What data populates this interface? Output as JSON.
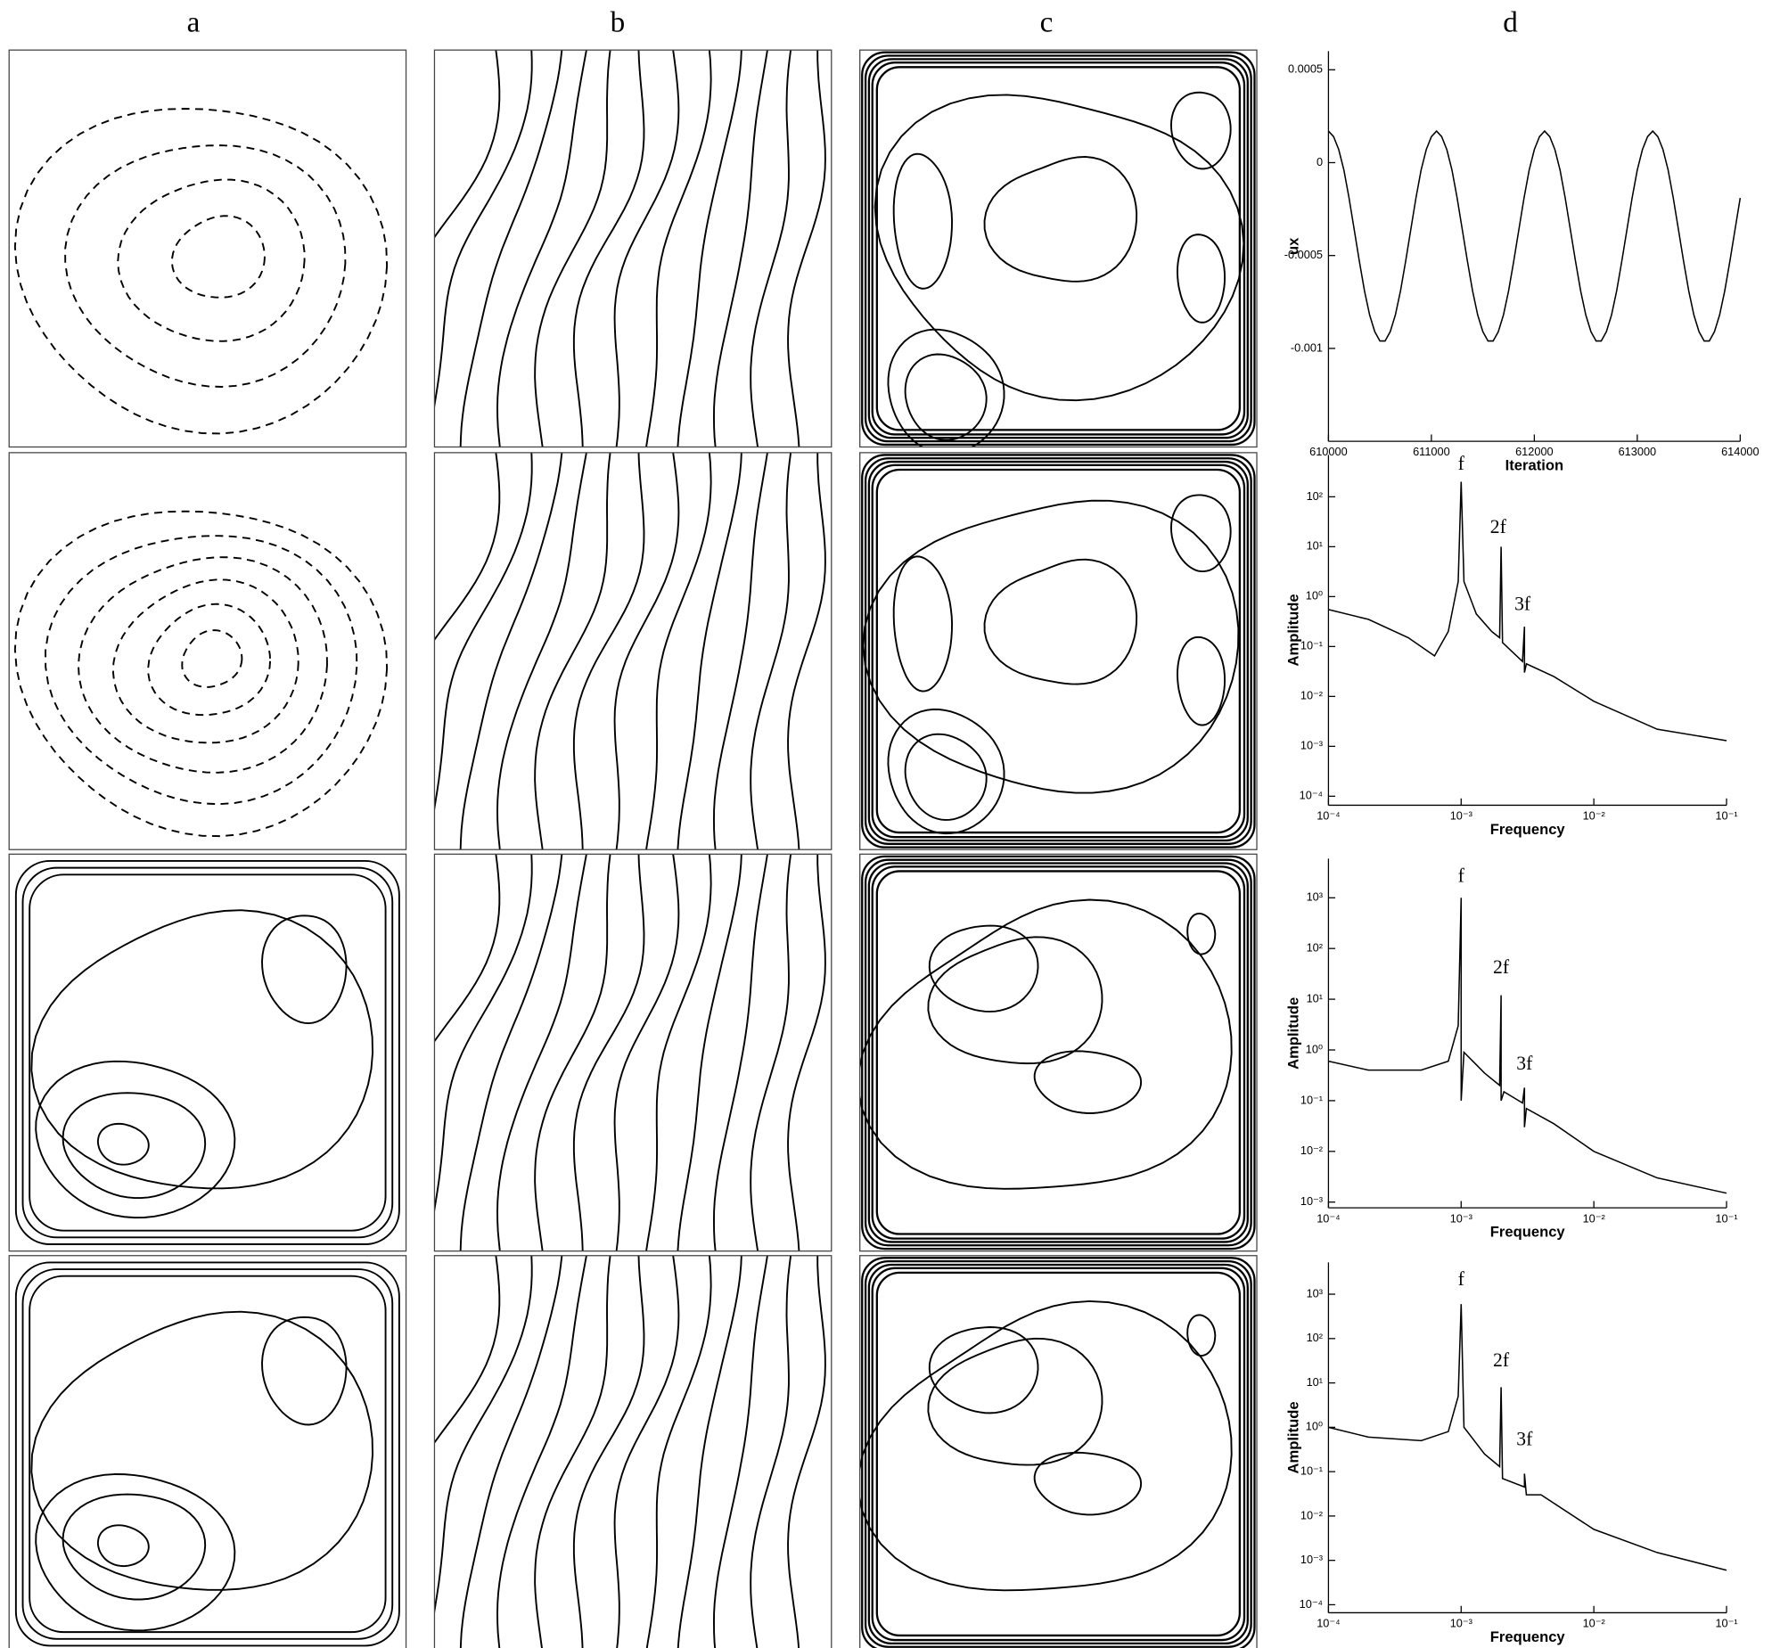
{
  "column_labels": [
    "a",
    "b",
    "c",
    "d"
  ],
  "chart_data": [
    {
      "type": "line",
      "xlabel": "Iteration",
      "ylabel": "ux",
      "color": "#000000",
      "x": [
        610000,
        610050,
        610100,
        610150,
        610200,
        610250,
        610300,
        610350,
        610400,
        610450,
        610500,
        610550,
        610600,
        610650,
        610700,
        610750,
        610800,
        610850,
        610900,
        610950,
        611000,
        611050,
        611100,
        611150,
        611200,
        611250,
        611300,
        611350,
        611400,
        611450,
        611500,
        611550,
        611600,
        611650,
        611700,
        611750,
        611800,
        611850,
        611900,
        611950,
        612000,
        612050,
        612100,
        612150,
        612200,
        612250,
        612300,
        612350,
        612400,
        612450,
        612500,
        612550,
        612600,
        612650,
        612700,
        612750,
        612800,
        612850,
        612900,
        612950,
        613000,
        613050,
        613100,
        613150,
        613200,
        613250,
        613300,
        613350,
        613400,
        613450,
        613500,
        613550,
        613600,
        613650,
        613700,
        613750,
        613800,
        613850,
        613900,
        613950,
        614000
      ],
      "values": [
        0.00017,
        0.00014,
        7e-05,
        -4e-05,
        -0.00019,
        -0.00036,
        -0.00053,
        -0.00069,
        -0.00082,
        -0.00091,
        -0.00096,
        -0.00096,
        -0.00091,
        -0.00082,
        -0.00069,
        -0.00053,
        -0.00036,
        -0.00019,
        -4e-05,
        7e-05,
        0.00014,
        0.00017,
        0.00014,
        7e-05,
        -4e-05,
        -0.00019,
        -0.00036,
        -0.00053,
        -0.00069,
        -0.00082,
        -0.00091,
        -0.00096,
        -0.00096,
        -0.00091,
        -0.00082,
        -0.00069,
        -0.00053,
        -0.00036,
        -0.00019,
        -4e-05,
        7e-05,
        0.00014,
        0.00017,
        0.00014,
        7e-05,
        -4e-05,
        -0.00019,
        -0.00036,
        -0.00053,
        -0.00069,
        -0.00082,
        -0.00091,
        -0.00096,
        -0.00096,
        -0.00091,
        -0.00082,
        -0.00069,
        -0.00053,
        -0.00036,
        -0.00019,
        -4e-05,
        7e-05,
        0.00014,
        0.00017,
        0.00014,
        7e-05,
        -4e-05,
        -0.00019,
        -0.00036,
        -0.00053,
        -0.00069,
        -0.00082,
        -0.00091,
        -0.00096,
        -0.00096,
        -0.00091,
        -0.00082,
        -0.00069,
        -0.00053,
        -0.00036,
        -0.00019
      ],
      "xlim": [
        610000,
        614000
      ],
      "xticks": [
        610000,
        611000,
        612000,
        613000,
        614000
      ],
      "ylim": [
        -0.0015,
        0.0006
      ],
      "yticks": [
        0.0005,
        0,
        -0.0005,
        -0.001
      ]
    },
    {
      "type": "line",
      "log_x": true,
      "log_y": true,
      "xlabel": "Frequency",
      "ylabel": "Amplitude",
      "color": "#000000",
      "x": [
        0.0001,
        0.0002,
        0.0004,
        0.00063,
        0.0008,
        0.00095,
        0.001,
        0.00105,
        0.0013,
        0.0017,
        0.00195,
        0.002,
        0.00205,
        0.0029,
        0.003,
        0.003,
        0.0031,
        0.005,
        0.01,
        0.03,
        0.1
      ],
      "values": [
        0.55,
        0.35,
        0.15,
        0.065,
        0.2,
        2,
        200,
        2,
        0.45,
        0.2,
        0.15,
        10,
        0.12,
        0.05,
        0.25,
        0.03,
        0.045,
        0.025,
        0.008,
        0.0022,
        0.0013
      ],
      "xlim": [
        0.0001,
        0.1
      ],
      "xticks": [
        {
          "value": 0.0001,
          "label": "10⁻⁴"
        },
        {
          "value": 0.001,
          "label": "10⁻³"
        },
        {
          "value": 0.01,
          "label": "10⁻²"
        },
        {
          "value": 0.1,
          "label": "10⁻¹"
        }
      ],
      "ylim": [
        6.6e-05,
        690
      ],
      "yticks": [
        {
          "value": 0.0001,
          "label": "10⁻⁴"
        },
        {
          "value": 0.001,
          "label": "10⁻³"
        },
        {
          "value": 0.01,
          "label": "10⁻²"
        },
        {
          "value": 0.1,
          "label": "10⁻¹"
        },
        {
          "value": 1,
          "label": "10⁰"
        },
        {
          "value": 10,
          "label": "10¹"
        },
        {
          "value": 100,
          "label": "10²"
        }
      ],
      "annotations": [
        {
          "text": "f",
          "x": 0.001,
          "y": 430
        },
        {
          "text": "2f",
          "x": 0.0019,
          "y": 23
        },
        {
          "text": "3f",
          "x": 0.0029,
          "y": 0.66
        }
      ]
    },
    {
      "type": "line",
      "log_x": true,
      "log_y": true,
      "xlabel": "Frequency",
      "ylabel": "Amplitude",
      "color": "#000000",
      "x": [
        0.0001,
        0.0002,
        0.0005,
        0.0008,
        0.00095,
        0.001,
        0.001,
        0.00105,
        0.0015,
        0.00195,
        0.002,
        0.002,
        0.0021,
        0.0029,
        0.003,
        0.003,
        0.0031,
        0.005,
        0.01,
        0.03,
        0.1
      ],
      "values": [
        0.6,
        0.4,
        0.4,
        0.6,
        3,
        1000,
        0.1,
        0.9,
        0.35,
        0.2,
        12,
        0.1,
        0.15,
        0.09,
        0.18,
        0.03,
        0.07,
        0.035,
        0.01,
        0.003,
        0.0015
      ],
      "xlim": [
        0.0001,
        0.1
      ],
      "xticks": [
        {
          "value": 0.0001,
          "label": "10⁻⁴"
        },
        {
          "value": 0.001,
          "label": "10⁻³"
        },
        {
          "value": 0.01,
          "label": "10⁻²"
        },
        {
          "value": 0.1,
          "label": "10⁻¹"
        }
      ],
      "ylim": [
        0.00077,
        5900
      ],
      "yticks": [
        {
          "value": 0.001,
          "label": "10⁻³"
        },
        {
          "value": 0.01,
          "label": "10⁻²"
        },
        {
          "value": 0.1,
          "label": "10⁻¹"
        },
        {
          "value": 1,
          "label": "10⁰"
        },
        {
          "value": 10,
          "label": "10¹"
        },
        {
          "value": 100,
          "label": "10²"
        },
        {
          "value": 1000,
          "label": "10³"
        }
      ],
      "annotations": [
        {
          "text": "f",
          "x": 0.001,
          "y": 2500
        },
        {
          "text": "2f",
          "x": 0.002,
          "y": 40
        },
        {
          "text": "3f",
          "x": 0.003,
          "y": 0.5
        }
      ]
    },
    {
      "type": "line",
      "log_x": true,
      "log_y": true,
      "xlabel": "Frequency",
      "ylabel": "Amplitude",
      "color": "#000000",
      "x": [
        0.0001,
        0.0002,
        0.0005,
        0.0008,
        0.00095,
        0.001,
        0.00105,
        0.0015,
        0.00195,
        0.002,
        0.00205,
        0.003,
        0.003,
        0.0031,
        0.004,
        0.01,
        0.03,
        0.1
      ],
      "values": [
        1,
        0.6,
        0.5,
        0.8,
        5,
        600,
        1,
        0.25,
        0.13,
        8,
        0.07,
        0.045,
        0.09,
        0.03,
        0.03,
        0.005,
        0.0015,
        0.0006
      ],
      "xlim": [
        0.0001,
        0.1
      ],
      "xticks": [
        {
          "value": 0.0001,
          "label": "10⁻⁴"
        },
        {
          "value": 0.001,
          "label": "10⁻³"
        },
        {
          "value": 0.01,
          "label": "10⁻²"
        },
        {
          "value": 0.1,
          "label": "10⁻¹"
        }
      ],
      "ylim": [
        6.6e-05,
        5200
      ],
      "yticks": [
        {
          "value": 0.0001,
          "label": "10⁻⁴"
        },
        {
          "value": 0.001,
          "label": "10⁻³"
        },
        {
          "value": 0.01,
          "label": "10⁻²"
        },
        {
          "value": 0.1,
          "label": "10⁻¹"
        },
        {
          "value": 1,
          "label": "10⁰"
        },
        {
          "value": 10,
          "label": "10¹"
        },
        {
          "value": 100,
          "label": "10²"
        },
        {
          "value": 1000,
          "label": "10³"
        }
      ],
      "annotations": [
        {
          "text": "f",
          "x": 0.001,
          "y": 2000
        },
        {
          "text": "2f",
          "x": 0.002,
          "y": 30
        },
        {
          "text": "3f",
          "x": 0.003,
          "y": 0.5
        }
      ]
    }
  ]
}
